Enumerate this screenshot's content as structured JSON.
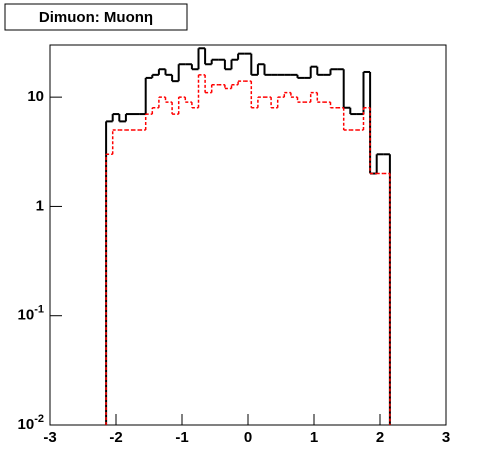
{
  "chart_data": {
    "type": "histogram",
    "title": "Dimuon: Muonη",
    "bins": [
      -2.15,
      -2.05,
      -1.95,
      -1.85,
      -1.75,
      -1.65,
      -1.55,
      -1.45,
      -1.35,
      -1.25,
      -1.15,
      -1.05,
      -0.95,
      -0.85,
      -0.75,
      -0.65,
      -0.55,
      -0.45,
      -0.35,
      -0.25,
      -0.15,
      -0.05,
      0.05,
      0.15,
      0.25,
      0.35,
      0.45,
      0.55,
      0.65,
      0.75,
      0.85,
      0.95,
      1.05,
      1.15,
      1.25,
      1.35,
      1.45,
      1.55,
      1.65,
      1.75,
      1.85,
      1.95,
      2.05,
      2.15
    ],
    "series": [
      {
        "color": "#000000",
        "linestyle": "solid",
        "values": [
          6,
          7,
          6,
          7,
          7,
          7,
          15,
          16,
          18,
          16,
          14,
          20,
          20,
          18,
          28,
          20,
          22,
          22,
          18,
          22,
          25,
          25,
          16,
          20,
          16,
          16,
          16,
          16,
          16,
          15,
          15,
          19,
          16,
          16,
          18,
          18,
          8,
          7,
          7,
          17,
          2,
          3,
          3
        ]
      },
      {
        "color": "#ff0000",
        "linestyle": "dashed",
        "values": [
          3,
          5,
          5,
          5,
          5,
          5,
          7,
          8,
          10,
          9,
          7,
          10,
          9,
          8,
          16,
          11,
          13,
          13,
          12,
          13,
          14,
          14,
          8,
          10,
          10,
          8,
          10,
          11,
          10,
          9,
          9,
          11,
          9,
          9,
          8,
          8,
          5,
          5,
          5,
          8,
          2,
          2,
          2
        ]
      }
    ],
    "xlim": [
      -3,
      3
    ],
    "xticks": [
      -3,
      -2,
      -1,
      0,
      1,
      2,
      3
    ],
    "ylim": [
      0.01,
      30
    ],
    "yticks": [
      {
        "value": 0.01,
        "label": "10-2"
      },
      {
        "value": 0.1,
        "label": "10-1"
      },
      1,
      10
    ],
    "log_y": true
  }
}
